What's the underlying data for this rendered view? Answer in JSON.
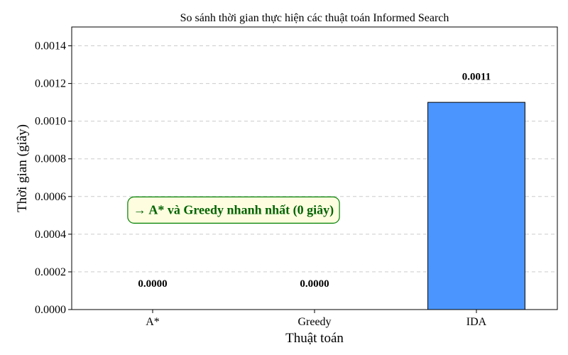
{
  "chart_data": {
    "type": "bar",
    "title": "So sánh thời gian thực hiện các thuật toán Informed Search",
    "xlabel": "Thuật toán",
    "ylabel": "Thời gian (giây)",
    "categories": [
      "A*",
      "Greedy",
      "IDA"
    ],
    "values": [
      0.0,
      0.0,
      0.0011
    ],
    "value_labels": [
      "0.0000",
      "0.0000",
      "0.0011"
    ],
    "ylim": [
      0,
      0.0015
    ],
    "yticks": [
      0,
      0.0002,
      0.0004,
      0.0006,
      0.0008,
      0.001,
      0.0012,
      0.0014
    ],
    "ytick_labels": [
      "0.0000",
      "0.0002",
      "0.0004",
      "0.0006",
      "0.0008",
      "0.0010",
      "0.0012",
      "0.0014"
    ],
    "grid": "y-dashed",
    "bar_color": "#4b96fe",
    "annotation": {
      "text": "→ A* và Greedy nhanh nhất (0 giây)",
      "text_color": "#006400",
      "box_fill": "#fffde0",
      "box_border": "#008000",
      "anchor_y_value": 0.00053
    }
  }
}
